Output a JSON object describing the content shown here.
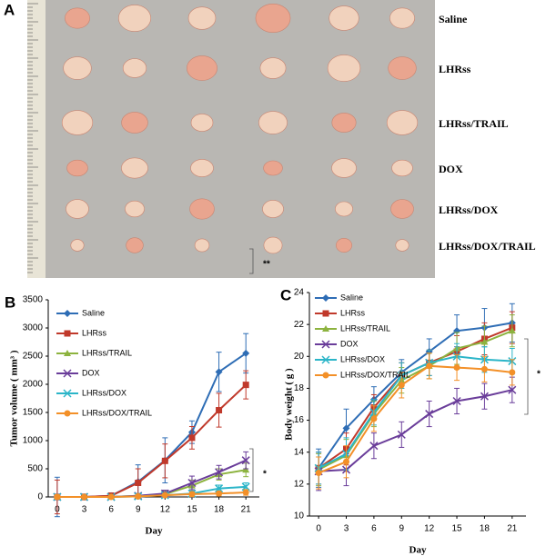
{
  "panel_a": {
    "label": "A",
    "rows": [
      "Saline",
      "LHRss",
      "LHRss/TRAIL",
      "DOX",
      "LHRss/DOX",
      "LHRss/DOX/TRAIL"
    ]
  },
  "chart_data": [
    {
      "type": "line",
      "panel_label": "B",
      "xlabel": "Day",
      "ylabel": "Tumor volume ( mm³ )",
      "x": [
        0,
        3,
        6,
        9,
        12,
        15,
        18,
        21
      ],
      "xlim": [
        -1,
        22.5
      ],
      "xticks": [
        0,
        3,
        6,
        9,
        12,
        15,
        18,
        21
      ],
      "ylim": [
        0,
        3500
      ],
      "yticks": [
        0,
        500,
        1000,
        1500,
        2000,
        2500,
        3000,
        3500
      ],
      "annotations": [
        "**",
        "*"
      ],
      "series": [
        {
          "name": "Saline",
          "color": "#2e6db5",
          "marker": "diamond",
          "values": [
            0,
            0,
            20,
            270,
            650,
            1150,
            2220,
            2550
          ],
          "errors": [
            350,
            50,
            50,
            300,
            400,
            200,
            350,
            350
          ]
        },
        {
          "name": "LHRss",
          "color": "#c0392b",
          "marker": "square",
          "values": [
            0,
            0,
            20,
            250,
            640,
            1050,
            1540,
            1990
          ],
          "errors": [
            300,
            50,
            50,
            250,
            300,
            200,
            300,
            250
          ]
        },
        {
          "name": "LHRss/TRAIL",
          "color": "#8db33f",
          "marker": "triangle",
          "values": [
            0,
            0,
            0,
            20,
            50,
            200,
            400,
            480
          ],
          "errors": [
            50,
            30,
            30,
            40,
            60,
            100,
            100,
            120
          ]
        },
        {
          "name": "DOX",
          "color": "#6a3d9a",
          "marker": "x",
          "values": [
            0,
            0,
            0,
            20,
            60,
            250,
            440,
            650
          ],
          "errors": [
            50,
            30,
            30,
            40,
            60,
            120,
            120,
            150
          ]
        },
        {
          "name": "LHRss/DOX",
          "color": "#2bb5c8",
          "marker": "x",
          "values": [
            0,
            0,
            0,
            10,
            30,
            60,
            150,
            180
          ],
          "errors": [
            40,
            30,
            30,
            30,
            40,
            50,
            60,
            70
          ]
        },
        {
          "name": "LHRss/DOX/TRAIL",
          "color": "#f39028",
          "marker": "circle",
          "values": [
            0,
            0,
            0,
            10,
            30,
            50,
            60,
            80
          ],
          "errors": [
            40,
            30,
            30,
            30,
            30,
            40,
            40,
            50
          ]
        }
      ]
    },
    {
      "type": "line",
      "panel_label": "C",
      "xlabel": "Day",
      "ylabel": "Body weight ( g )",
      "x": [
        0,
        3,
        6,
        9,
        12,
        15,
        18,
        21
      ],
      "xlim": [
        -1,
        22.5
      ],
      "xticks": [
        0,
        3,
        6,
        9,
        12,
        15,
        18,
        21
      ],
      "ylim": [
        10,
        24
      ],
      "yticks": [
        10,
        12,
        14,
        16,
        18,
        20,
        22,
        24
      ],
      "annotations": [
        "*"
      ],
      "series": [
        {
          "name": "Saline",
          "color": "#2e6db5",
          "marker": "diamond",
          "values": [
            13.0,
            15.5,
            17.3,
            19.0,
            20.3,
            21.6,
            21.8,
            22.1
          ],
          "errors": [
            1.2,
            1.2,
            0.8,
            0.8,
            0.8,
            1.0,
            1.2,
            1.2
          ]
        },
        {
          "name": "LHRss",
          "color": "#c0392b",
          "marker": "square",
          "values": [
            13.0,
            14.2,
            16.8,
            18.8,
            19.6,
            20.3,
            21.1,
            21.8
          ],
          "errors": [
            1.0,
            1.0,
            0.8,
            0.8,
            0.8,
            1.0,
            1.0,
            1.0
          ]
        },
        {
          "name": "LHRss/TRAIL",
          "color": "#8db33f",
          "marker": "triangle",
          "values": [
            12.9,
            13.8,
            16.4,
            18.5,
            19.4,
            20.5,
            20.9,
            21.6
          ],
          "errors": [
            1.0,
            1.0,
            0.8,
            0.8,
            0.8,
            1.0,
            1.0,
            1.0
          ]
        },
        {
          "name": "DOX",
          "color": "#6a3d9a",
          "marker": "x",
          "values": [
            12.8,
            12.9,
            14.4,
            15.1,
            16.4,
            17.2,
            17.5,
            17.9
          ],
          "errors": [
            1.2,
            1.0,
            0.8,
            0.8,
            0.8,
            0.8,
            0.8,
            0.8
          ]
        },
        {
          "name": "LHRss/DOX",
          "color": "#2bb5c8",
          "marker": "x",
          "values": [
            13.0,
            13.9,
            16.5,
            18.8,
            19.6,
            20.0,
            19.8,
            19.7
          ],
          "errors": [
            1.0,
            1.0,
            0.8,
            0.8,
            0.8,
            0.8,
            0.8,
            0.8
          ]
        },
        {
          "name": "LHRss/DOX/TRAIL",
          "color": "#f39028",
          "marker": "circle",
          "values": [
            12.7,
            13.4,
            16.1,
            18.2,
            19.4,
            19.3,
            19.2,
            19.0
          ],
          "errors": [
            1.0,
            1.0,
            0.8,
            0.8,
            0.8,
            0.8,
            0.8,
            0.8
          ]
        }
      ]
    }
  ]
}
